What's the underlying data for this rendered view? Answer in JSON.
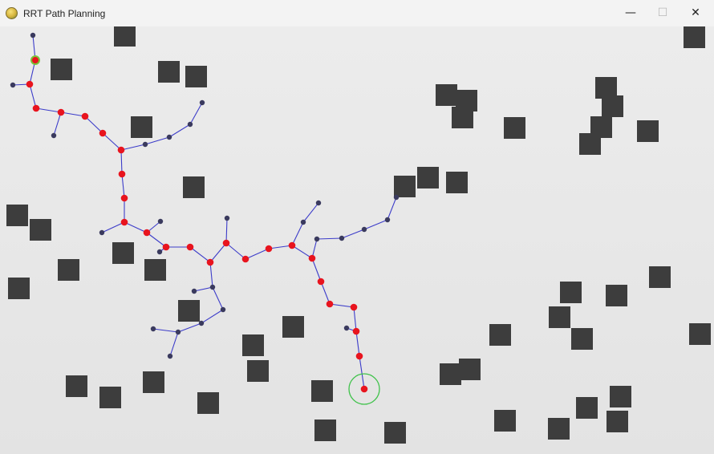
{
  "window": {
    "title": "RRT Path Planning",
    "icon": "pygame-icon",
    "controls": {
      "minimize": "—",
      "maximize": "☐",
      "close": "✕"
    }
  },
  "colors": {
    "obstacle": "#3d3d3d",
    "tree_edge": "#3c3cc9",
    "tree_node": "#3a3a5e",
    "path_node": "#e8141e",
    "goal_ring": "#3fc24a",
    "start_ring": "#79c33a"
  }
}
